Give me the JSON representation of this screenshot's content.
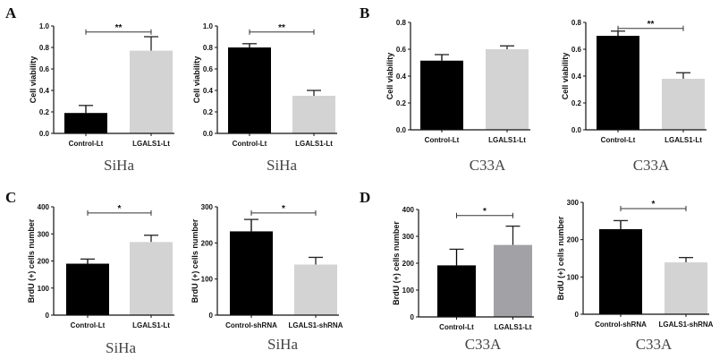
{
  "chart_data": [
    {
      "panel": "A",
      "type": "bar",
      "title": "SiHa",
      "ylabel": "Cell viability",
      "ylim": [
        0,
        1.0
      ],
      "yticks": [
        "0.0",
        "0.2",
        "0.4",
        "0.6",
        "0.8",
        "1.0"
      ],
      "categories": [
        "Control-Lt",
        "LGALS1-Lt"
      ],
      "values": [
        0.19,
        0.77
      ],
      "errors": [
        0.07,
        0.13
      ],
      "colors": [
        "#000000",
        "#d3d3d3"
      ],
      "significance": "**"
    },
    {
      "panel": "",
      "type": "bar",
      "title": "SiHa",
      "ylabel": "Cell viability",
      "ylim": [
        0,
        1.0
      ],
      "yticks": [
        "0.0",
        "0.2",
        "0.4",
        "0.6",
        "0.8",
        "1.0"
      ],
      "categories": [
        "Control-Lt",
        "LGALS1-Lt"
      ],
      "values": [
        0.8,
        0.35
      ],
      "errors": [
        0.035,
        0.05
      ],
      "colors": [
        "#000000",
        "#d3d3d3"
      ],
      "significance": "**"
    },
    {
      "panel": "B",
      "type": "bar",
      "title": "C33A",
      "ylabel": "Cell viability",
      "ylim": [
        0,
        0.8
      ],
      "yticks": [
        "0.0",
        "0.2",
        "0.4",
        "0.6",
        "0.8"
      ],
      "categories": [
        "Control-Lt",
        "LGALS1-Lt"
      ],
      "values": [
        0.515,
        0.6
      ],
      "errors": [
        0.045,
        0.025
      ],
      "colors": [
        "#000000",
        "#d3d3d3"
      ],
      "significance": ""
    },
    {
      "panel": "",
      "type": "bar",
      "title": "C33A",
      "ylabel": "Cell viability",
      "ylim": [
        0,
        0.8
      ],
      "yticks": [
        "0.0",
        "0.2",
        "0.4",
        "0.6",
        "0.8"
      ],
      "categories": [
        "Control-Lt",
        "LGALS1-Lt"
      ],
      "values": [
        0.7,
        0.38
      ],
      "errors": [
        0.035,
        0.045
      ],
      "colors": [
        "#000000",
        "#d3d3d3"
      ],
      "significance": "**"
    },
    {
      "panel": "C",
      "type": "bar",
      "title": "SiHa",
      "ylabel": "BrdU (+) cells number",
      "ylim": [
        0,
        400
      ],
      "yticks": [
        "0",
        "100",
        "200",
        "300",
        "400"
      ],
      "categories": [
        "Control-Lt",
        "LGALS1-Lt"
      ],
      "values": [
        190,
        270
      ],
      "errors": [
        17,
        25
      ],
      "colors": [
        "#000000",
        "#d3d3d3"
      ],
      "significance": "*"
    },
    {
      "panel": "",
      "type": "bar",
      "title": "SiHa",
      "ylabel": "BrdU (+) cells number",
      "ylim": [
        0,
        300
      ],
      "yticks": [
        "0",
        "100",
        "200",
        "300"
      ],
      "categories": [
        "Control-shRNA",
        "LGALS1-shRNA"
      ],
      "values": [
        232,
        140
      ],
      "errors": [
        33,
        20
      ],
      "colors": [
        "#000000",
        "#d3d3d3"
      ],
      "significance": "*"
    },
    {
      "panel": "D",
      "type": "bar",
      "title": "C33A",
      "ylabel": "BrdU (+) cells number",
      "ylim": [
        0,
        400
      ],
      "yticks": [
        "0",
        "100",
        "200",
        "300",
        "400"
      ],
      "categories": [
        "Control-Lt",
        "LGALS1-Lt"
      ],
      "values": [
        192,
        268
      ],
      "errors": [
        60,
        70
      ],
      "colors": [
        "#000000",
        "#a2a2a6"
      ],
      "significance": "*"
    },
    {
      "panel": "",
      "type": "bar",
      "title": "C33A",
      "ylabel": "BrdU (+) cells number",
      "ylim": [
        0,
        300
      ],
      "yticks": [
        "0",
        "100",
        "200",
        "300"
      ],
      "categories": [
        "Control-shRNA",
        "LGALS1-shRNA"
      ],
      "values": [
        228,
        139
      ],
      "errors": [
        23,
        13
      ],
      "colors": [
        "#000000",
        "#d3d3d3"
      ],
      "significance": "*"
    }
  ]
}
